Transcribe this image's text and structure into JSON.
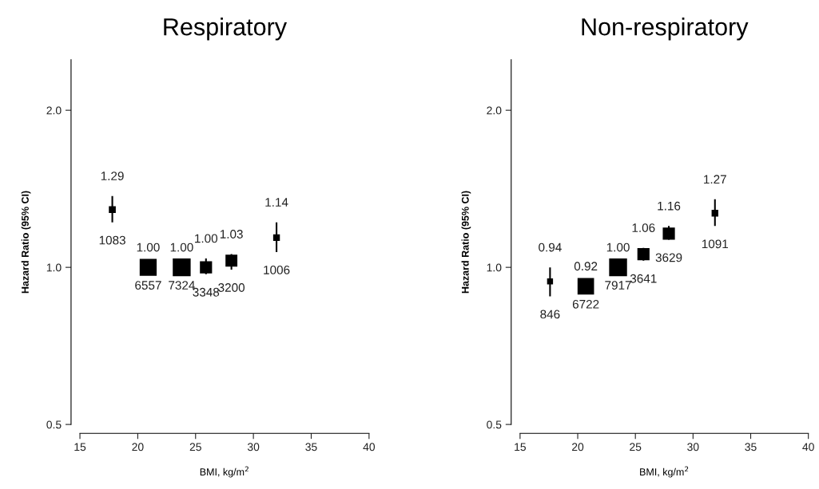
{
  "chart_data": [
    {
      "type": "bubble",
      "title": "Respiratory",
      "xlabel": "BMI, kg/m$^{2}$",
      "ylabel": "Hazard Ratio (95% CI)",
      "log": "y",
      "marker": "square",
      "xlim": [
        15,
        40
      ],
      "xticks": [
        15,
        20,
        25,
        30,
        35,
        40
      ],
      "ylim": [
        0.5,
        2.5
      ],
      "yticks": [
        {
          "value": 0.5,
          "label": "0.5"
        },
        {
          "value": 1.0,
          "label": "1.0"
        },
        {
          "value": 2.0,
          "label": "2.0"
        }
      ],
      "series": [
        {
          "color": "#000000",
          "x": [
            17.8,
            20.9,
            23.8,
            25.9,
            28.1,
            32.0
          ],
          "values": [
            1.29,
            1.0,
            1.0,
            1.0,
            1.03,
            1.14
          ],
          "value_labels": [
            "1.29",
            "1.00",
            "1.00",
            "1.00",
            "1.03",
            "1.14"
          ],
          "sizes": [
            0.15,
            0.9,
            1,
            0.46,
            0.44,
            0.14
          ],
          "errors": [
            [
              1.22,
              1.37
            ],
            null,
            null,
            [
              0.97,
              1.04
            ],
            [
              0.99,
              1.06
            ],
            [
              1.07,
              1.22
            ]
          ]
        }
      ],
      "annotations": [
        {
          "text": "1083",
          "x": 17.8,
          "y": 1.29
        },
        {
          "text": "6557",
          "x": 20.9,
          "y": 1.0
        },
        {
          "text": "7324",
          "x": 23.8,
          "y": 1.0
        },
        {
          "text": "3348",
          "x": 25.9,
          "y": 1.0
        },
        {
          "text": "3200",
          "x": 28.1,
          "y": 1.03
        },
        {
          "text": "1006",
          "x": 32.0,
          "y": 1.14
        }
      ]
    },
    {
      "type": "bubble",
      "title": "Non-respiratory",
      "xlabel": "BMI, kg/m$^{2}$",
      "ylabel": "Hazard Ratio (95% CI)",
      "log": "y",
      "marker": "square",
      "xlim": [
        15,
        40
      ],
      "xticks": [
        15,
        20,
        25,
        30,
        35,
        40
      ],
      "ylim": [
        0.5,
        2.5
      ],
      "yticks": [
        {
          "value": 0.5,
          "label": "0.5"
        },
        {
          "value": 1.0,
          "label": "1.0"
        },
        {
          "value": 2.0,
          "label": "2.0"
        }
      ],
      "series": [
        {
          "color": "#000000",
          "x": [
            17.6,
            20.7,
            23.5,
            25.7,
            27.9,
            31.9
          ],
          "values": [
            0.94,
            0.92,
            1.0,
            1.06,
            1.16,
            1.27
          ],
          "value_labels": [
            "0.94",
            "0.92",
            "1.00",
            "1.06",
            "1.16",
            "1.27"
          ],
          "sizes": [
            0.11,
            0.85,
            1,
            0.46,
            0.46,
            0.14
          ],
          "errors": [
            [
              0.88,
              1.0
            ],
            null,
            null,
            [
              1.03,
              1.09
            ],
            [
              1.13,
              1.2
            ],
            [
              1.2,
              1.35
            ]
          ]
        }
      ],
      "annotations": [
        {
          "text": "846",
          "x": 17.6,
          "y": 0.94
        },
        {
          "text": "6722",
          "x": 20.7,
          "y": 0.92
        },
        {
          "text": "7917",
          "x": 23.5,
          "y": 1.0
        },
        {
          "text": "3641",
          "x": 25.7,
          "y": 1.06
        },
        {
          "text": "3629",
          "x": 27.9,
          "y": 1.16
        },
        {
          "text": "1091",
          "x": 31.9,
          "y": 1.27
        }
      ]
    }
  ]
}
